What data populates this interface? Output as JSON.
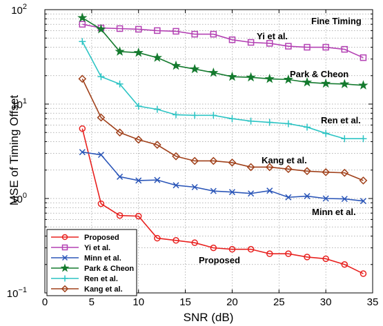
{
  "chart_data": {
    "type": "line",
    "xlabel": "SNR (dB)",
    "ylabel": "MSE of Timing Offset",
    "xlim": [
      0,
      35
    ],
    "ylim": [
      0.1,
      100
    ],
    "yscale": "log",
    "grid": true,
    "x_ticks": [
      "0",
      "5",
      "10",
      "15",
      "20",
      "25",
      "30",
      "35"
    ],
    "y_ticks": [
      {
        "base": "10",
        "exp": "−1",
        "value": 0.1
      },
      {
        "base": "10",
        "exp": "0",
        "value": 1
      },
      {
        "base": "10",
        "exp": "1",
        "value": 10
      },
      {
        "base": "10",
        "exp": "2",
        "value": 100
      }
    ],
    "legend_position": "bottom-left",
    "series": [
      {
        "name": "Proposed",
        "color": "#e8201e",
        "marker": "circle",
        "x": [
          4,
          6,
          8,
          10,
          12,
          14,
          16,
          18,
          20,
          22,
          24,
          26,
          28,
          30,
          32,
          34
        ],
        "y": [
          5.5,
          0.88,
          0.66,
          0.65,
          0.38,
          0.36,
          0.34,
          0.3,
          0.29,
          0.29,
          0.26,
          0.26,
          0.24,
          0.23,
          0.2,
          0.16
        ]
      },
      {
        "name": "Yi et al.",
        "color": "#b341b3",
        "marker": "square",
        "x": [
          4,
          6,
          8,
          10,
          12,
          14,
          16,
          18,
          20,
          22,
          24,
          26,
          28,
          30,
          32,
          34
        ],
        "y": [
          70,
          64,
          63,
          62,
          60,
          59,
          55,
          55,
          48,
          45,
          44,
          41,
          40,
          40,
          38,
          31
        ]
      },
      {
        "name": "Minn et al.",
        "color": "#2b56b8",
        "marker": "x",
        "x": [
          4,
          6,
          8,
          10,
          12,
          14,
          16,
          18,
          20,
          22,
          24,
          26,
          28,
          30,
          32,
          34
        ],
        "y": [
          3.1,
          2.9,
          1.7,
          1.55,
          1.57,
          1.38,
          1.32,
          1.2,
          1.17,
          1.13,
          1.21,
          1.03,
          1.06,
          1.0,
          0.99,
          0.94
        ]
      },
      {
        "name": "Park & Cheon",
        "color": "#147a2e",
        "marker": "star",
        "x": [
          4,
          6,
          8,
          10,
          12,
          14,
          16,
          18,
          20,
          22,
          24,
          26,
          28,
          30,
          32,
          34
        ],
        "y": [
          82,
          62,
          36,
          35,
          31,
          25.5,
          23.5,
          21.5,
          19.5,
          19.2,
          18.5,
          18.2,
          17,
          16.5,
          16.3,
          15.8
        ]
      },
      {
        "name": "Ren et al.",
        "color": "#2cc4c4",
        "marker": "plus",
        "x": [
          4,
          6,
          8,
          10,
          12,
          14,
          16,
          18,
          20,
          22,
          24,
          26,
          28,
          30,
          32,
          34
        ],
        "y": [
          46,
          19.5,
          16.3,
          9.5,
          8.8,
          7.7,
          7.6,
          7.6,
          7.0,
          6.6,
          6.4,
          6.2,
          5.7,
          4.9,
          4.3,
          4.3
        ]
      },
      {
        "name": "Kang et al.",
        "color": "#a0401a",
        "marker": "diamond",
        "x": [
          4,
          6,
          8,
          10,
          12,
          14,
          16,
          18,
          20,
          22,
          24,
          26,
          28,
          30,
          32,
          34
        ],
        "y": [
          18.5,
          7.2,
          5.0,
          4.2,
          3.7,
          2.8,
          2.5,
          2.5,
          2.4,
          2.15,
          2.15,
          2.05,
          1.95,
          1.9,
          1.87,
          1.55
        ]
      }
    ],
    "annotations": [
      "Fine Timing",
      "Yi et al.",
      "Park & Cheon",
      "Ren et al.",
      "Kang et al.",
      "Minn et al.",
      "Proposed"
    ]
  }
}
